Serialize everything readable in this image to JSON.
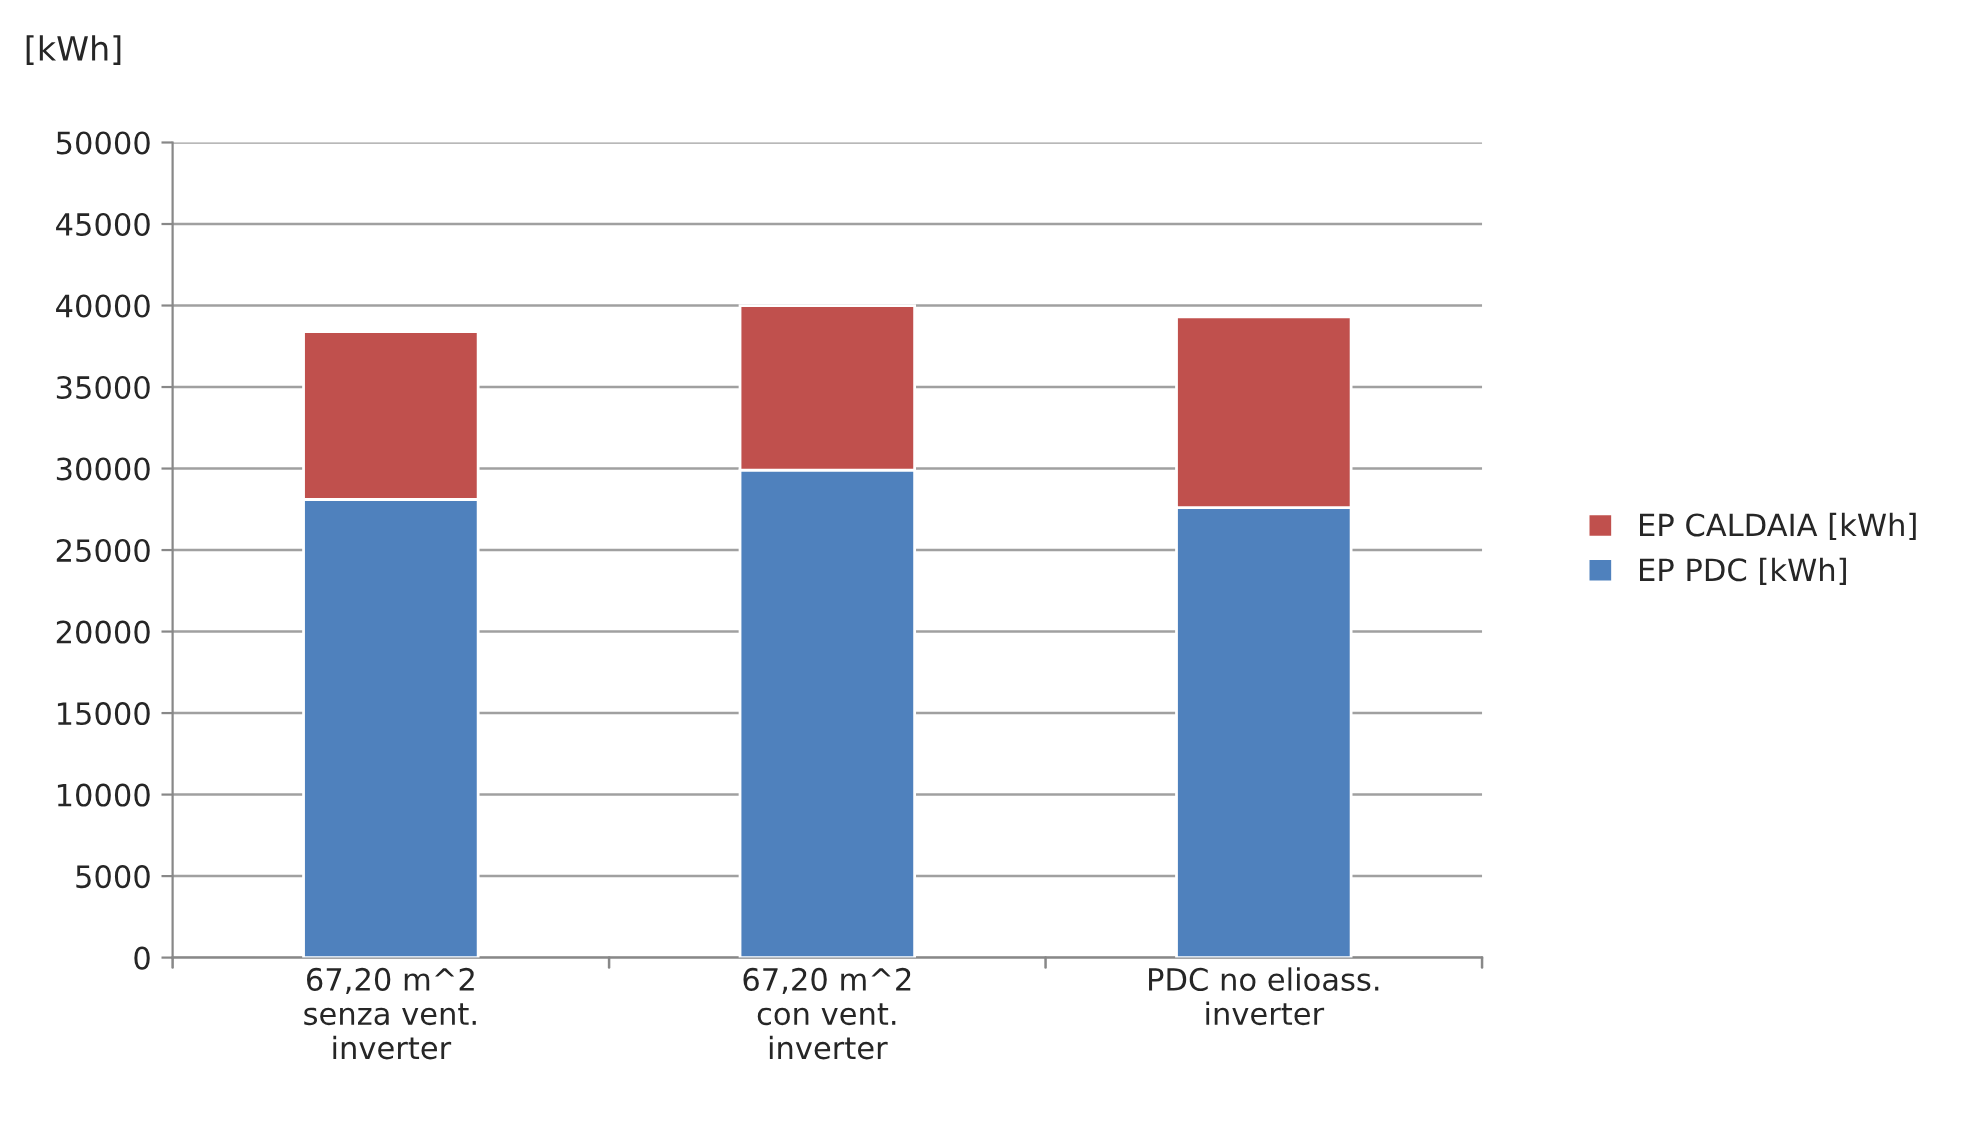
{
  "chart_data": {
    "type": "bar",
    "stacked": true,
    "ylabel": "[kWh]",
    "categories": [
      "67,20 m^2\nsenza vent.\ninverter",
      "67,20 m^2\ncon vent.\ninverter",
      "PDC no elioass.\ninverter"
    ],
    "series": [
      {
        "name": "EP PDC [kWh]",
        "color": "#4f81bd",
        "values": [
          28100,
          29900,
          27600
        ]
      },
      {
        "name": "EP CALDAIA [kWh]",
        "color": "#c0504d",
        "values": [
          10300,
          10100,
          11700
        ]
      }
    ],
    "ylim": [
      0,
      50000
    ],
    "yticks": [
      0,
      5000,
      10000,
      15000,
      20000,
      25000,
      30000,
      35000,
      40000,
      45000,
      50000
    ],
    "grid": "y",
    "legend": "right"
  }
}
